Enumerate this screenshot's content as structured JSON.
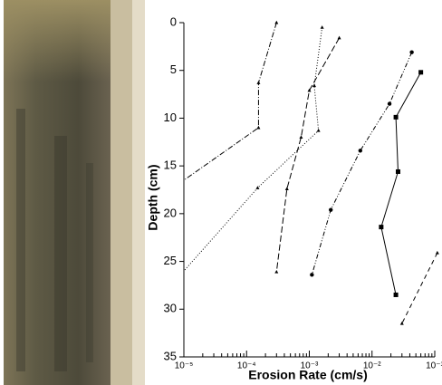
{
  "chart_data": {
    "type": "line",
    "xlabel": "Erosion Rate (cm/s)",
    "ylabel": "Depth (cm)",
    "xscale": "log",
    "y_inverted": true,
    "xlim": [
      1e-05,
      0.1
    ],
    "ylim": [
      0,
      35
    ],
    "xticks": [
      {
        "value": 1e-05,
        "label": "10⁻⁵"
      },
      {
        "value": 0.0001,
        "label": "10⁻⁴"
      },
      {
        "value": 0.001,
        "label": "10⁻³"
      },
      {
        "value": 0.01,
        "label": "10⁻²"
      },
      {
        "value": 0.1,
        "label": "10⁻¹"
      }
    ],
    "yticks": [
      0,
      5,
      10,
      15,
      20,
      25,
      30,
      35
    ],
    "series": [
      {
        "color": "#000",
        "dash": "6 2 1 2",
        "marker": "triangle",
        "x": [
          0.0003,
          0.000155,
          0.000155,
          1e-05
        ],
        "values": [
          0,
          6.3,
          11,
          16.5
        ]
      },
      {
        "color": "#000",
        "dash": "1 2",
        "marker": "triangle",
        "x": [
          0.0016,
          0.0012,
          0.0014,
          0.00015,
          1e-05
        ],
        "values": [
          0.5,
          6.6,
          11.3,
          17.3,
          26
        ]
      },
      {
        "color": "#000",
        "dash": "7 3",
        "marker": "triangle",
        "x": [
          0.003,
          0.001,
          0.00074,
          0.00044,
          0.0003
        ],
        "values": [
          1.6,
          7.1,
          12,
          17.4,
          26.1
        ]
      },
      {
        "color": "#000",
        "dash": "5 2 1 2 1 2",
        "marker": "circle",
        "x": [
          0.043,
          0.019,
          0.0065,
          0.0022,
          0.0011
        ],
        "values": [
          3.1,
          8.5,
          13.4,
          19.6,
          26.4
        ]
      },
      {
        "color": "#000",
        "dash": "",
        "marker": "square",
        "x": [
          0.06,
          0.024,
          0.026,
          0.014,
          0.024
        ],
        "values": [
          5.2,
          9.9,
          15.6,
          21.4,
          28.5
        ]
      },
      {
        "color": "#000",
        "dash": "5 4",
        "marker": "triangle",
        "x": [
          0.11,
          0.03
        ],
        "values": [
          24.1,
          31.5
        ]
      }
    ]
  }
}
